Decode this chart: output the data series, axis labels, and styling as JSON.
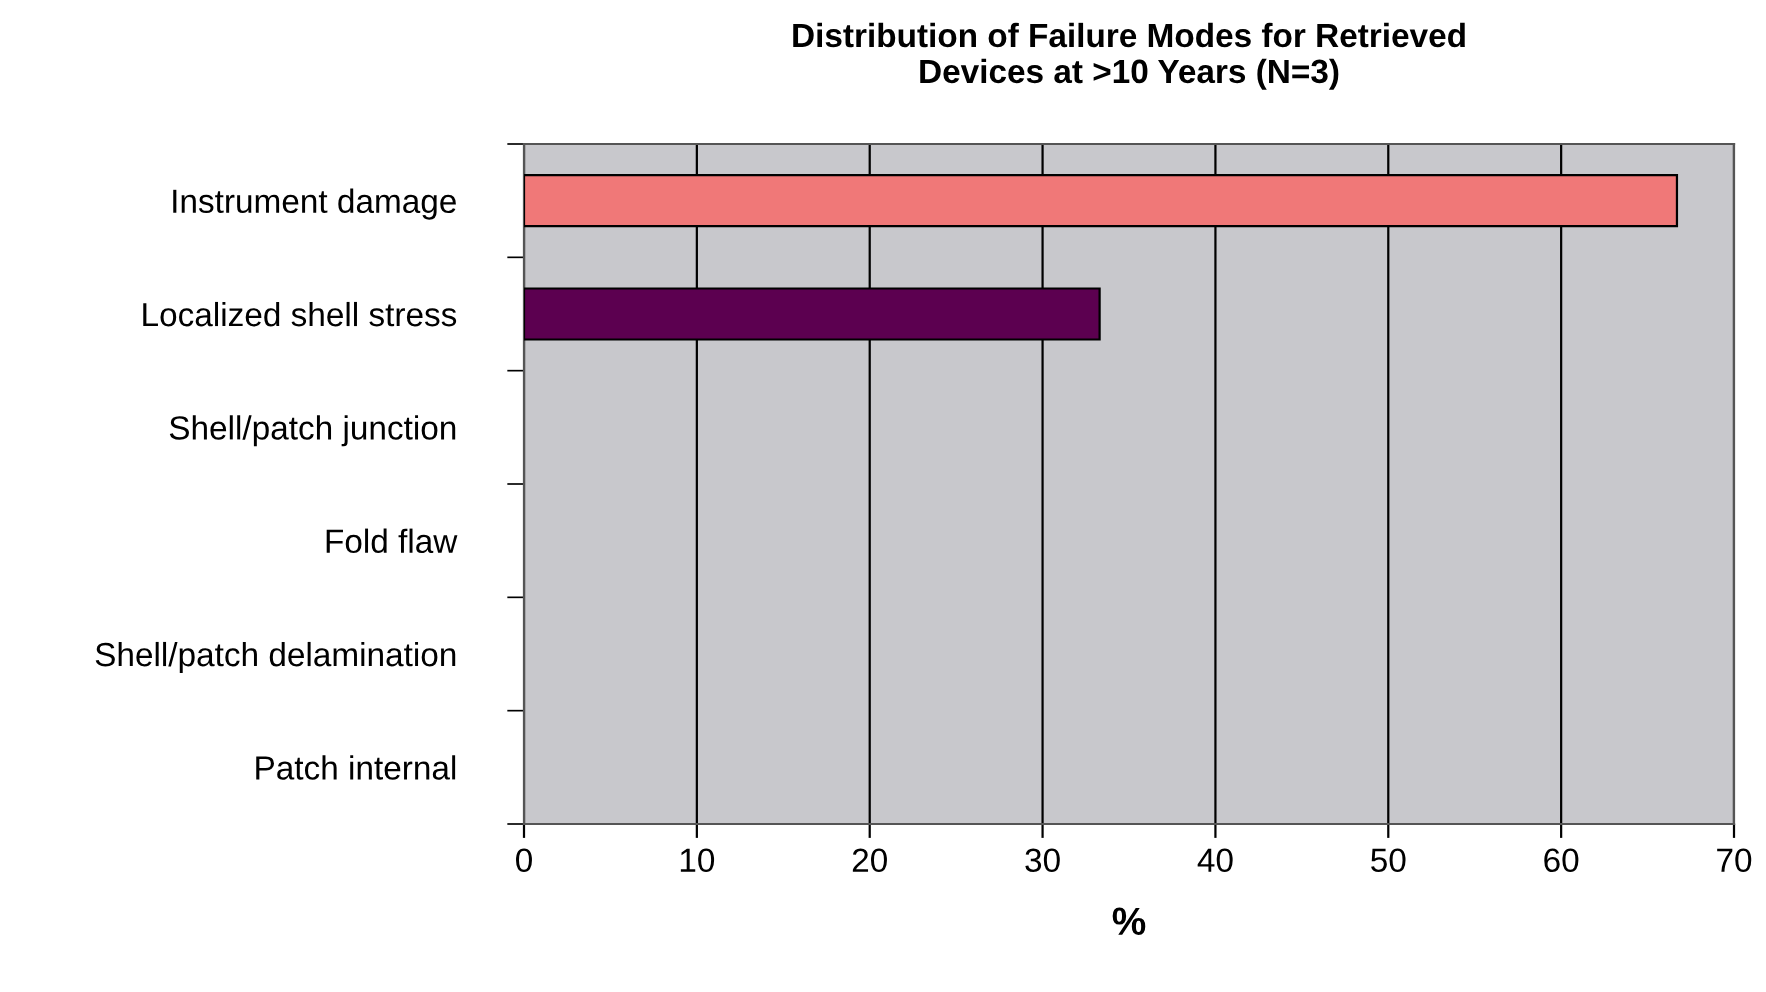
{
  "chart_data": {
    "type": "bar",
    "orientation": "horizontal",
    "title": "Distribution of Failure Modes for Retrieved\nDevices at >10 Years (N=3)",
    "xlabel": "%",
    "categories": [
      "Instrument damage",
      "Localized shell stress",
      "Shell/patch junction",
      "Fold flaw",
      "Shell/patch delamination",
      "Patch internal"
    ],
    "values": [
      66.7,
      33.3,
      0,
      0,
      0,
      0
    ],
    "colors": [
      "#f07878",
      "#5c0050",
      null,
      null,
      null,
      null
    ],
    "xlim": [
      0,
      70
    ],
    "xticks": [
      0,
      10,
      20,
      30,
      40,
      50,
      60,
      70
    ],
    "grid": "x"
  }
}
